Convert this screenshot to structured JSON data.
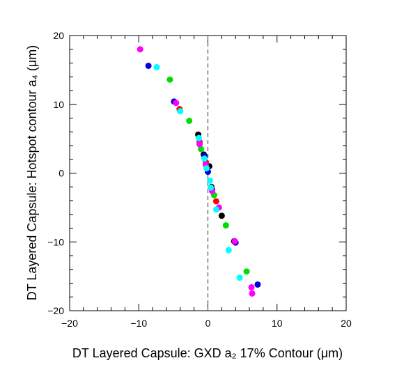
{
  "chart_data": {
    "type": "scatter",
    "title": "",
    "xlabel": "DT Layered Capsule: GXD a₂ 17% Contour (μm)",
    "ylabel": "DT Layered Capsule: Hotspot contour a₄ (μm)",
    "xlim": [
      -20,
      20
    ],
    "ylim": [
      -20,
      20
    ],
    "x_ticks": [
      -20,
      -10,
      0,
      10,
      20
    ],
    "y_ticks": [
      -20,
      -10,
      0,
      10,
      20
    ],
    "x_tick_labels": [
      "−20",
      "−10",
      "0",
      "10",
      "20"
    ],
    "y_tick_labels": [
      "−20",
      "−10",
      "0",
      "10",
      "20"
    ],
    "grid": false,
    "reference_line": {
      "x": 0,
      "style": "dashed",
      "color": "#555555"
    },
    "series": [
      {
        "color": "#000000",
        "points": [
          [
            -1.4,
            5.6
          ],
          [
            -0.6,
            2.7
          ],
          [
            0.2,
            1.0
          ],
          [
            0.5,
            -2.0
          ],
          [
            2.0,
            -6.2
          ],
          [
            3.8,
            -9.9
          ]
        ]
      },
      {
        "color": "#0000dd",
        "points": [
          [
            -8.6,
            15.6
          ],
          [
            -4.9,
            10.4
          ],
          [
            -0.5,
            2.5
          ],
          [
            0.0,
            0.2
          ],
          [
            0.6,
            -2.4
          ],
          [
            4.0,
            -10.1
          ],
          [
            7.2,
            -16.2
          ]
        ]
      },
      {
        "color": "#ff0000",
        "points": [
          [
            -4.1,
            9.3
          ],
          [
            -1.2,
            4.5
          ],
          [
            -0.3,
            1.6
          ],
          [
            1.2,
            -4.1
          ]
        ]
      },
      {
        "color": "#00dd00",
        "points": [
          [
            -5.5,
            13.6
          ],
          [
            -2.7,
            7.6
          ],
          [
            -1.0,
            3.5
          ],
          [
            0.9,
            -3.2
          ],
          [
            2.6,
            -7.6
          ],
          [
            5.6,
            -14.3
          ]
        ]
      },
      {
        "color": "#ff00ff",
        "points": [
          [
            -9.8,
            18.0
          ],
          [
            -4.6,
            10.2
          ],
          [
            -1.2,
            4.2
          ],
          [
            -0.3,
            1.2
          ],
          [
            0.6,
            -2.6
          ],
          [
            1.6,
            -5.0
          ],
          [
            3.9,
            -9.9
          ],
          [
            6.3,
            -16.6
          ],
          [
            6.4,
            -17.5
          ]
        ]
      },
      {
        "color": "#00ffff",
        "points": [
          [
            -7.4,
            15.4
          ],
          [
            -4.0,
            9.0
          ],
          [
            -1.3,
            5.1
          ],
          [
            -0.5,
            2.1
          ],
          [
            -0.2,
            0.7
          ],
          [
            0.3,
            -1.1
          ],
          [
            0.4,
            -2.1
          ],
          [
            1.2,
            -5.3
          ],
          [
            3.0,
            -11.2
          ],
          [
            4.6,
            -15.2
          ]
        ]
      }
    ]
  }
}
